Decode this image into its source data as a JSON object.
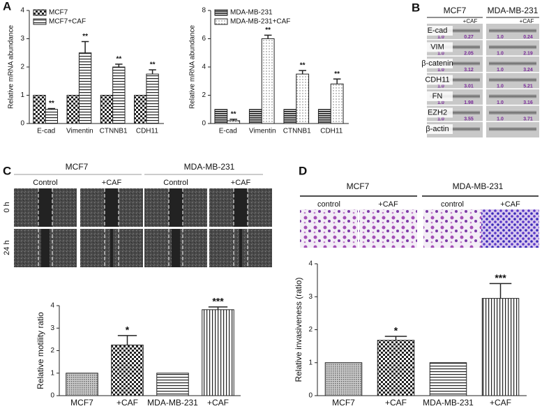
{
  "panel_labels": [
    "A",
    "B",
    "C",
    "D"
  ],
  "blot": {
    "columns": [
      "MCF7",
      "MDA-MB-231"
    ],
    "treatment": [
      "+CAF",
      "+CAF"
    ],
    "rows": [
      {
        "label": "E-cad",
        "values": [
          "1.0",
          "0.27",
          "1.0",
          "0.24"
        ]
      },
      {
        "label": "VIM",
        "values": [
          "1.0",
          "2.05",
          "1.0",
          "2.19"
        ]
      },
      {
        "label": "β-catenin",
        "values": [
          "1.0",
          "3.12",
          "1.0",
          "3.24"
        ]
      },
      {
        "label": "CDH11",
        "values": [
          "1.0",
          "3.01",
          "1.0",
          "5.21"
        ]
      },
      {
        "label": "FN",
        "values": [
          "1.0",
          "1.98",
          "1.0",
          "3.16"
        ]
      },
      {
        "label": "EZH2",
        "values": [
          "1.0",
          "3.55",
          "1.0",
          "3.71"
        ]
      },
      {
        "label": "β-actin",
        "values": []
      }
    ]
  },
  "migration": {
    "columns": [
      "MCF7",
      "MDA-MB-231"
    ],
    "conditions": [
      "Control",
      "+CAF",
      "Control",
      "+CAF"
    ],
    "times": [
      "0 h",
      "24 h"
    ]
  },
  "invasion": {
    "columns": [
      "MCF7",
      "MDA-MB-231"
    ],
    "conditions": [
      "control",
      "+CAF",
      "control",
      "+CAF"
    ]
  },
  "chart_data": [
    {
      "type": "bar",
      "ylabel": "Relative mRNA abundance",
      "categories": [
        "E-cad",
        "Vimentin",
        "CTNNB1",
        "CDH11"
      ],
      "ylim": [
        0,
        4
      ],
      "yticks": [
        0,
        1,
        2,
        3,
        4
      ],
      "legend": "upper left",
      "series": [
        {
          "name": "MCF7",
          "color": "#222",
          "pattern": "checker",
          "values": [
            1,
            1,
            1,
            1
          ]
        },
        {
          "name": "MCF7+CAF",
          "color": "#222",
          "pattern": "hlines",
          "values": [
            0.5,
            2.5,
            2.0,
            1.75
          ],
          "errors": [
            0.03,
            0.4,
            0.1,
            0.15
          ],
          "annotations": [
            "**",
            "**",
            "**",
            "**"
          ]
        }
      ]
    },
    {
      "type": "bar",
      "ylabel": "Relative mRNA abundance",
      "categories": [
        "E-cad",
        "Vimentin",
        "CTNNB1",
        "CDH11"
      ],
      "ylim": [
        0,
        8
      ],
      "yticks": [
        0,
        2,
        4,
        6,
        8
      ],
      "legend": "upper left",
      "series": [
        {
          "name": "MDA-MB-231",
          "color": "#222",
          "pattern": "darklines",
          "values": [
            1,
            1,
            1,
            1
          ]
        },
        {
          "name": "MDA-MB-231+CAF",
          "color": "#222",
          "pattern": "dots",
          "values": [
            0.2,
            6.0,
            3.5,
            2.8
          ],
          "errors": [
            0.1,
            0.25,
            0.25,
            0.35
          ],
          "annotations": [
            "**",
            "**",
            "**",
            "**"
          ]
        }
      ]
    },
    {
      "type": "bar",
      "ylabel": "Relative motility ratio",
      "categories": [
        "MCF7",
        "+CAF",
        "MDA-MB-231",
        "+CAF"
      ],
      "ylim": [
        0,
        4
      ],
      "yticks": [
        0,
        1,
        2,
        3,
        4
      ],
      "series": [
        {
          "color": "#222",
          "patterns": [
            "fine",
            "checker",
            "hlines",
            "vlines"
          ],
          "values": [
            1,
            2.25,
            1,
            3.82
          ],
          "errors": [
            0,
            0.42,
            0,
            0.12
          ],
          "annotations": [
            null,
            "*",
            null,
            "***"
          ]
        }
      ]
    },
    {
      "type": "bar",
      "ylabel": "Relative invasiveness (ratio)",
      "categories": [
        "MCF7",
        "+CAF",
        "MDA-MB-231",
        "+CAF"
      ],
      "ylim": [
        0,
        4
      ],
      "yticks": [
        0,
        1,
        2,
        3,
        4
      ],
      "series": [
        {
          "color": "#222",
          "patterns": [
            "fine",
            "checker",
            "hlines",
            "vlines"
          ],
          "values": [
            1,
            1.68,
            1,
            2.95
          ],
          "errors": [
            0,
            0.12,
            0,
            0.45
          ],
          "annotations": [
            null,
            "*",
            null,
            "***"
          ]
        }
      ]
    }
  ]
}
